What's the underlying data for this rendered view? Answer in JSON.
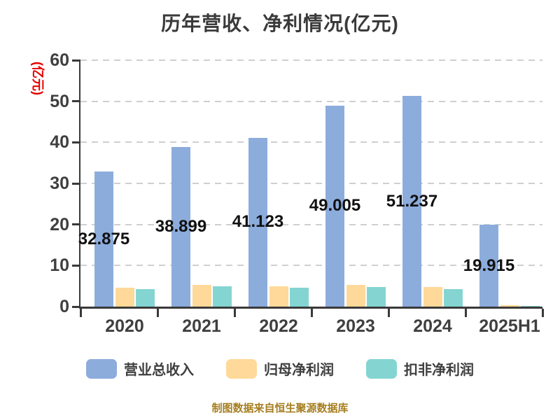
{
  "title": "历年营收、净利情况(亿元)",
  "caption": "制图数据来自恒生聚源数据库",
  "colors": {
    "background": "#ffffff",
    "title_text": "#3a3a3a",
    "axis": "#3a3a3a",
    "tick_label": "#3f3f3f",
    "grid_line": "#cfcfcf",
    "data_label": "#111111",
    "y_axis_name": "#e60000",
    "caption": "#a57e1f"
  },
  "chart_data": {
    "type": "bar",
    "title": "历年营收、净利情况(亿元)",
    "xlabel": "",
    "ylabel": "(亿元)",
    "categories": [
      "2020",
      "2021",
      "2022",
      "2023",
      "2024",
      "2025H1"
    ],
    "series": [
      {
        "name": "营业总收入",
        "color": "#8cacdc",
        "values": [
          32.875,
          38.899,
          41.123,
          49.005,
          51.237,
          19.915
        ],
        "data_labels": [
          "32.875",
          "38.899",
          "41.123",
          "49.005",
          "51.237",
          "19.915"
        ]
      },
      {
        "name": "归母净利润",
        "color": "#ffd999",
        "values": [
          4.6,
          5.3,
          4.9,
          5.3,
          4.7,
          0.35
        ]
      },
      {
        "name": "扣非净利润",
        "color": "#84d5d2",
        "values": [
          4.3,
          5.0,
          4.6,
          4.8,
          4.3,
          0.25
        ]
      }
    ],
    "ylim": [
      0,
      60
    ],
    "yticks": [
      0,
      10,
      20,
      30,
      40,
      50,
      60
    ],
    "grid": "horizontal-dashed",
    "legend_position": "bottom"
  }
}
